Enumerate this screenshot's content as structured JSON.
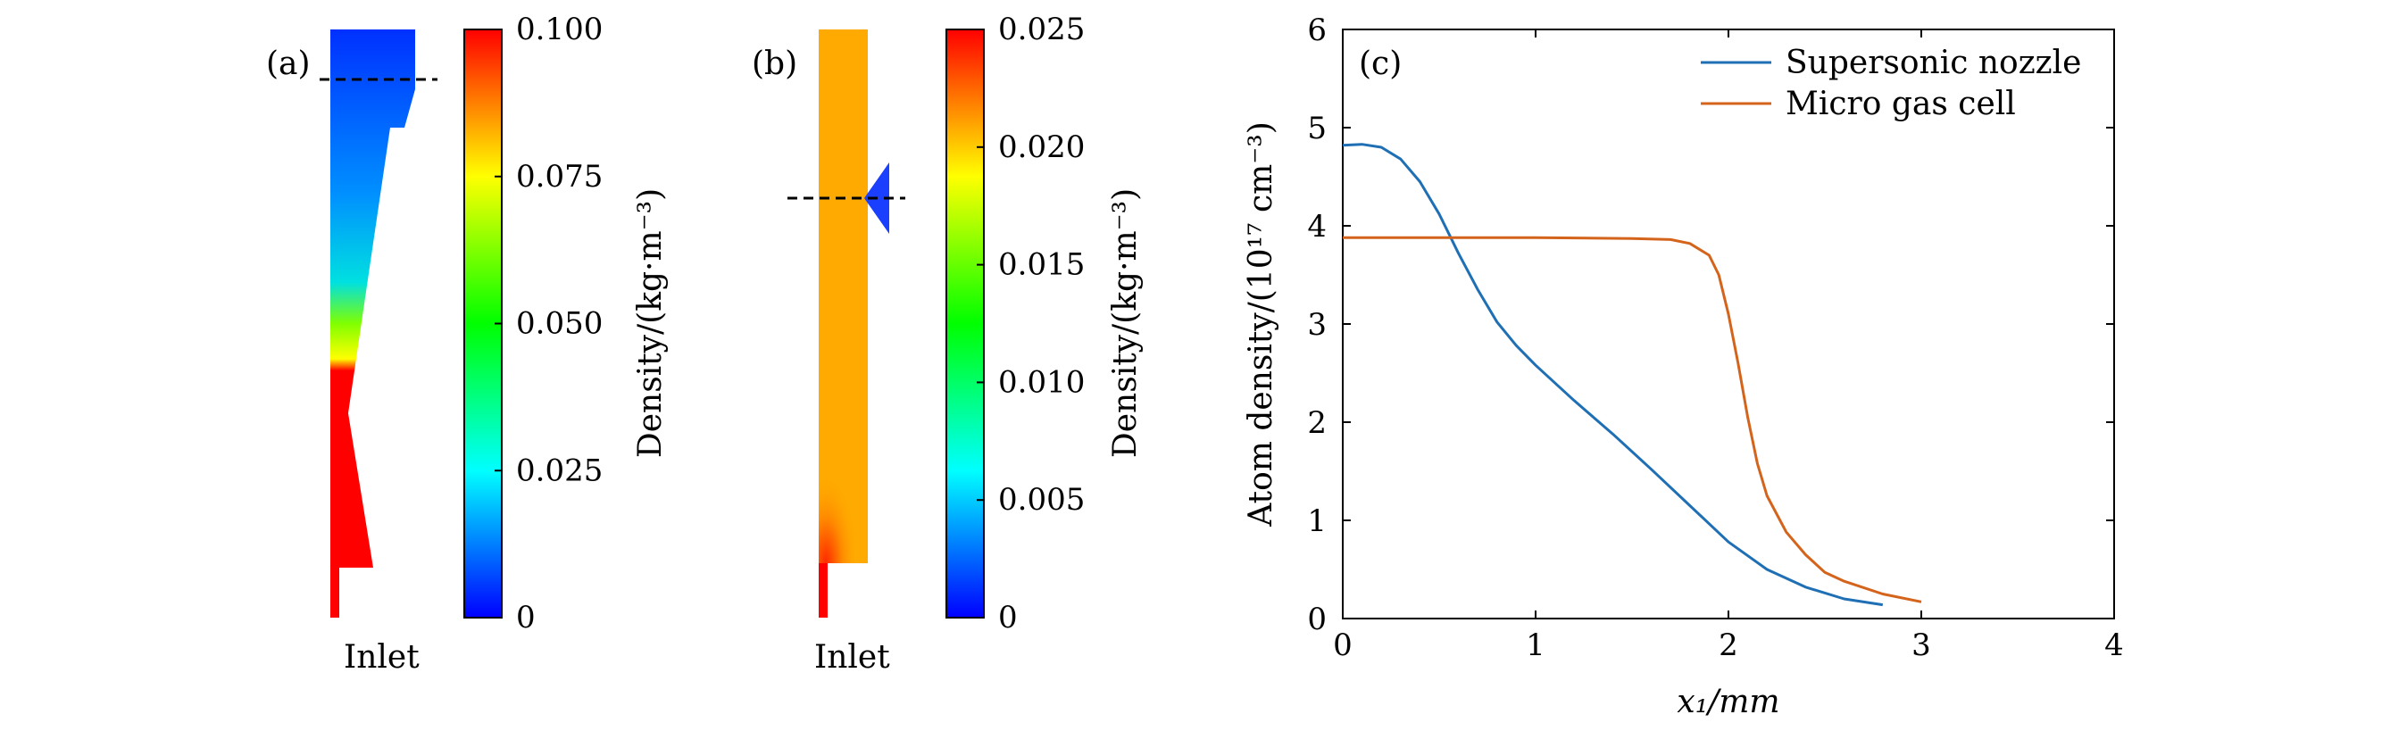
{
  "panels": {
    "a": {
      "label": "(a)",
      "inlet_label": "Inlet",
      "colorbar": {
        "ticks": [
          "0.100",
          "0.075",
          "0.050",
          "0.025",
          "0"
        ],
        "tick_values": [
          0.1,
          0.075,
          0.05,
          0.025,
          0
        ],
        "range": [
          0,
          0.1
        ],
        "label": "Density/(kg·m⁻³)"
      }
    },
    "b": {
      "label": "(b)",
      "inlet_label": "Inlet",
      "colorbar": {
        "ticks": [
          "0.025",
          "0.020",
          "0.015",
          "0.010",
          "0.005",
          "0"
        ],
        "tick_values": [
          0.025,
          0.02,
          0.015,
          0.01,
          0.005,
          0
        ],
        "range": [
          0,
          0.025
        ],
        "label": "Density/(kg·m⁻³)"
      }
    },
    "c": {
      "label": "(c)"
    }
  },
  "colormap": [
    "#0000ff",
    "#00ffff",
    "#00ff00",
    "#ffff00",
    "#ff0000"
  ],
  "chart_data": {
    "type": "line",
    "title": "",
    "xlabel": "x₁/mm",
    "ylabel": "Atom density/(10¹⁷ cm⁻³)",
    "xlim": [
      0,
      4
    ],
    "ylim": [
      0,
      6
    ],
    "xticks": [
      0,
      1,
      2,
      3,
      4
    ],
    "yticks": [
      0,
      1,
      2,
      3,
      4,
      5,
      6
    ],
    "legend_position": "top-right",
    "series": [
      {
        "name": "Supersonic nozzle",
        "color": "#1f6fb4",
        "x": [
          0,
          0.1,
          0.2,
          0.3,
          0.4,
          0.5,
          0.6,
          0.7,
          0.8,
          0.9,
          1.0,
          1.2,
          1.4,
          1.6,
          1.8,
          2.0,
          2.2,
          2.4,
          2.6,
          2.8
        ],
        "y": [
          4.82,
          4.83,
          4.8,
          4.68,
          4.45,
          4.12,
          3.72,
          3.35,
          3.02,
          2.78,
          2.58,
          2.22,
          1.88,
          1.52,
          1.15,
          0.78,
          0.5,
          0.32,
          0.2,
          0.14
        ]
      },
      {
        "name": "Micro gas cell",
        "color": "#d4641c",
        "x": [
          0,
          0.5,
          1.0,
          1.5,
          1.7,
          1.8,
          1.9,
          1.95,
          2.0,
          2.05,
          2.1,
          2.15,
          2.2,
          2.3,
          2.4,
          2.5,
          2.6,
          2.8,
          3.0
        ],
        "y": [
          3.88,
          3.88,
          3.88,
          3.87,
          3.86,
          3.82,
          3.7,
          3.5,
          3.1,
          2.6,
          2.05,
          1.58,
          1.25,
          0.88,
          0.65,
          0.47,
          0.38,
          0.25,
          0.17
        ]
      }
    ]
  }
}
